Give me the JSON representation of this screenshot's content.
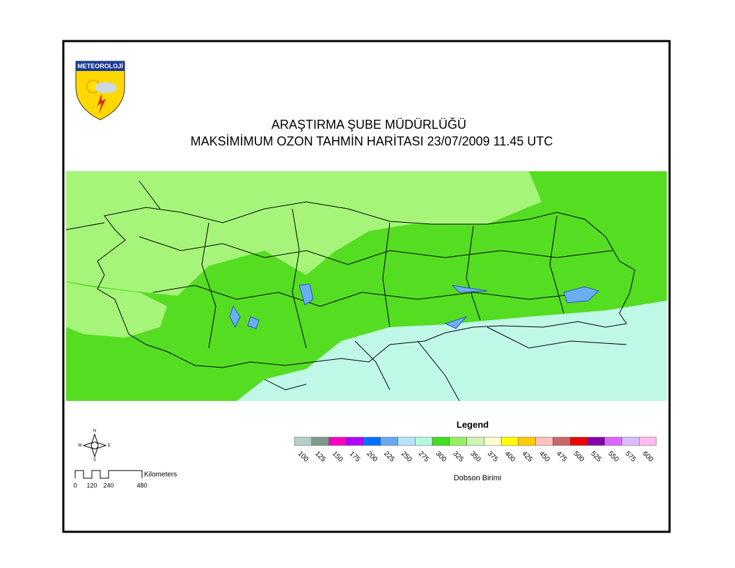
{
  "header": {
    "logo": "METEOROLOJİ",
    "title": "ARAŞTIRMA ŞUBE MÜDÜRLÜĞÜ",
    "subtitle": "MAKSİMİMUM OZON TAHMİN HARİTASI 23/07/2009 11.45 UTC"
  },
  "compass": {
    "north": "N",
    "south": "S",
    "east": "E",
    "west": "W"
  },
  "scale_bar": {
    "unit": "Kilometers",
    "labels": [
      "0",
      "120",
      "240",
      "480"
    ]
  },
  "legend": {
    "title": "Legend",
    "unit": "Dobson Birimi",
    "items": [
      {
        "label": "100",
        "color": "#b4cec8"
      },
      {
        "label": "125",
        "color": "#7f9a8a"
      },
      {
        "label": "150",
        "color": "#ff00c0"
      },
      {
        "label": "175",
        "color": "#b400ff"
      },
      {
        "label": "200",
        "color": "#0070ff"
      },
      {
        "label": "225",
        "color": "#6aa8f0"
      },
      {
        "label": "250",
        "color": "#b8e4f8"
      },
      {
        "label": "275",
        "color": "#b8f8e0"
      },
      {
        "label": "300",
        "color": "#44dd22"
      },
      {
        "label": "325",
        "color": "#99ee66"
      },
      {
        "label": "350",
        "color": "#ccf8b0"
      },
      {
        "label": "375",
        "color": "#ffffd0"
      },
      {
        "label": "400",
        "color": "#ffff00"
      },
      {
        "label": "425",
        "color": "#ffcc00"
      },
      {
        "label": "450",
        "color": "#ffc0c0"
      },
      {
        "label": "475",
        "color": "#cc6666"
      },
      {
        "label": "500",
        "color": "#ee0000"
      },
      {
        "label": "525",
        "color": "#8800aa"
      },
      {
        "label": "550",
        "color": "#dd66ff"
      },
      {
        "label": "575",
        "color": "#ddbbff"
      },
      {
        "label": "600",
        "color": "#ffbbee"
      }
    ]
  }
}
